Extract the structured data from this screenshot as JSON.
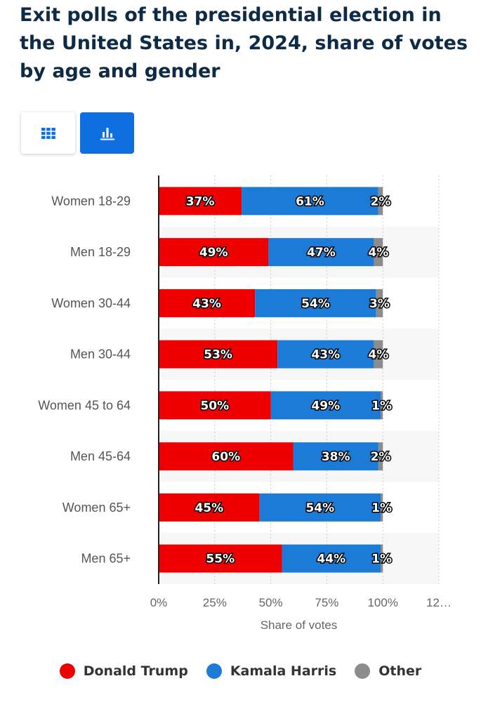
{
  "chart_data": {
    "type": "bar",
    "orientation": "horizontal",
    "stacked": true,
    "title": "Exit polls of the presidential election in the United States in, 2024, share of votes by age and gender",
    "categories": [
      "Women 18-29",
      "Men 18-29",
      "Women 30-44",
      "Men 30-44",
      "Women 45 to 64",
      "Men 45-64",
      "Women 65+",
      "Men 65+"
    ],
    "series": [
      {
        "name": "Donald Trump",
        "color": "#ee0000",
        "values": [
          37,
          49,
          43,
          53,
          50,
          60,
          45,
          55
        ]
      },
      {
        "name": "Kamala Harris",
        "color": "#1b7bd6",
        "values": [
          61,
          47,
          54,
          43,
          49,
          38,
          54,
          44
        ]
      },
      {
        "name": "Other",
        "color": "#8c8c8c",
        "values": [
          2,
          4,
          3,
          4,
          1,
          2,
          1,
          1
        ]
      }
    ],
    "xlabel": "Share of votes",
    "ylabel": "",
    "xlim": [
      0,
      125
    ],
    "xticks": [
      "0%",
      "25%",
      "50%",
      "75%",
      "100%",
      "12…"
    ],
    "xtick_values": [
      0,
      25,
      50,
      75,
      100,
      125
    ],
    "legend_position": "bottom",
    "grid": true
  },
  "controls": {
    "table_view_icon": "grid-icon",
    "chart_view_icon": "bar-chart-icon",
    "active_view": "chart"
  }
}
